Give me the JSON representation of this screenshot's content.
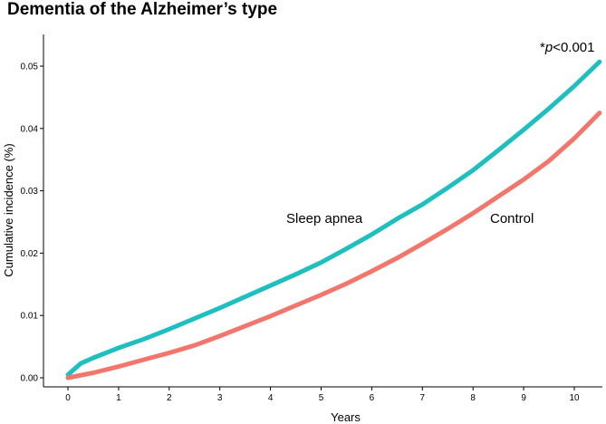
{
  "chart_data": {
    "type": "line",
    "title": "Dementia of the Alzheimer’s type",
    "xlabel": "Years",
    "ylabel": "Cumulative incidence (%)",
    "xlim": [
      0,
      10.5
    ],
    "ylim": [
      0,
      0.05
    ],
    "x_ticks": [
      0,
      1,
      2,
      3,
      4,
      5,
      6,
      7,
      8,
      9,
      10
    ],
    "x_tick_labels": [
      "0",
      "1",
      "2",
      "3",
      "4",
      "5",
      "6",
      "7",
      "8",
      "9",
      "10"
    ],
    "y_ticks": [
      0,
      0.01,
      0.02,
      0.03,
      0.04,
      0.05
    ],
    "y_tick_labels": [
      "0.00",
      "0.01",
      "0.02",
      "0.03",
      "0.04",
      "0.05"
    ],
    "grid": false,
    "annotation": {
      "prefix": "*",
      "p_symbol": "p",
      "text": "<0.001"
    },
    "series": [
      {
        "name": "Sleep apnea",
        "color": "#1fbfbf",
        "x": [
          0,
          0.25,
          0.5,
          1,
          1.5,
          2,
          2.5,
          3,
          3.5,
          4,
          4.5,
          5,
          5.5,
          6,
          6.5,
          7,
          7.5,
          8,
          8.5,
          9,
          9.5,
          10,
          10.5
        ],
        "y": [
          0.0005,
          0.0023,
          0.0032,
          0.0048,
          0.0062,
          0.0078,
          0.0095,
          0.0112,
          0.013,
          0.0148,
          0.0166,
          0.0185,
          0.0207,
          0.023,
          0.0255,
          0.0278,
          0.0305,
          0.0333,
          0.0365,
          0.0398,
          0.0432,
          0.0468,
          0.0507
        ]
      },
      {
        "name": "Control",
        "color": "#f2766b",
        "x": [
          0,
          0.5,
          1,
          1.5,
          2,
          2.5,
          3,
          3.5,
          4,
          4.5,
          5,
          5.5,
          6,
          6.5,
          7,
          7.5,
          8,
          8.5,
          9,
          9.5,
          10,
          10.5
        ],
        "y": [
          0,
          0.0008,
          0.0018,
          0.0029,
          0.004,
          0.0052,
          0.0067,
          0.0083,
          0.0099,
          0.0116,
          0.0133,
          0.0151,
          0.0171,
          0.0192,
          0.0215,
          0.0239,
          0.0264,
          0.0291,
          0.0318,
          0.0348,
          0.0384,
          0.0425
        ]
      }
    ]
  }
}
